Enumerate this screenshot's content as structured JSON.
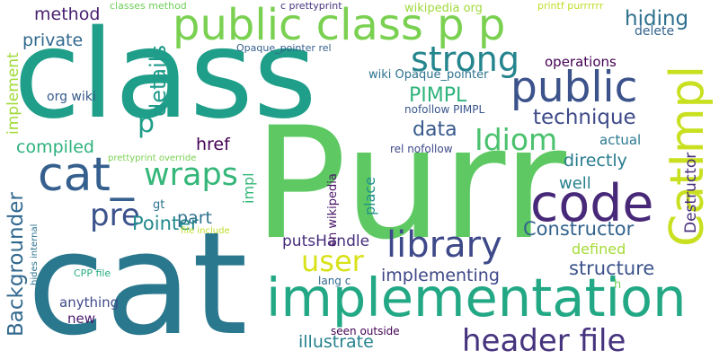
{
  "words": [
    {
      "text": "class",
      "color": "#1f9e89"
    },
    {
      "text": "Purr",
      "color": "#5ec962"
    },
    {
      "text": "cat",
      "color": "#2a788e"
    },
    {
      "text": "implementation",
      "color": "#22a884"
    },
    {
      "text": "public class p p",
      "color": "#7ad151"
    },
    {
      "text": "code",
      "color": "#482878"
    },
    {
      "text": "CatImpl",
      "color": "#c8e020"
    },
    {
      "text": "cat_",
      "color": "#355f8d"
    },
    {
      "text": "public",
      "color": "#3b528b"
    },
    {
      "text": "library",
      "color": "#3e4989"
    },
    {
      "text": "header file",
      "color": "#46337e"
    },
    {
      "text": "strong",
      "color": "#25858e"
    },
    {
      "text": "wraps",
      "color": "#35b779"
    },
    {
      "text": "Idiom",
      "color": "#4ac16d"
    },
    {
      "text": "pre",
      "color": "#3b528b"
    },
    {
      "text": "user",
      "color": "#d8e219"
    },
    {
      "text": "Backgrounder",
      "color": "#31688e"
    },
    {
      "text": "details",
      "color": "#1f9a8a"
    },
    {
      "text": "hiding",
      "color": "#2d708e"
    },
    {
      "text": "technique",
      "color": "#3e4a89"
    },
    {
      "text": "PIMPL",
      "color": "#2fb47c"
    },
    {
      "text": "data",
      "color": "#38598c"
    },
    {
      "text": "Constructor",
      "color": "#33638d"
    },
    {
      "text": "Pointer",
      "color": "#238a8d"
    },
    {
      "text": "structure",
      "color": "#3b528b"
    },
    {
      "text": "method",
      "color": "#481f70"
    },
    {
      "text": "private",
      "color": "#31688e"
    },
    {
      "text": "compiled",
      "color": "#2db27d"
    },
    {
      "text": "href",
      "color": "#440154"
    },
    {
      "text": "part",
      "color": "#2c728e"
    },
    {
      "text": "directly",
      "color": "#287c8e"
    },
    {
      "text": "implementing",
      "color": "#3f4788"
    },
    {
      "text": "putsHandle",
      "color": "#472d7b"
    },
    {
      "text": "illustrate",
      "color": "#26828e"
    },
    {
      "text": "Destructor",
      "color": "#472d7b"
    },
    {
      "text": "implement",
      "color": "#a0da39"
    },
    {
      "text": "well",
      "color": "#277f8e"
    },
    {
      "text": "actual",
      "color": "#2a788e"
    },
    {
      "text": "operations",
      "color": "#440154"
    },
    {
      "text": "defined",
      "color": "#a5db36"
    },
    {
      "text": "anything",
      "color": "#3e4a89"
    },
    {
      "text": "place",
      "color": "#21918c"
    },
    {
      "text": "impl",
      "color": "#35b779"
    },
    {
      "text": "new",
      "color": "#48186a"
    },
    {
      "text": "delete",
      "color": "#33638d"
    },
    {
      "text": "p",
      "color": "#1f9e89"
    },
    {
      "text": "org wiki",
      "color": "#38598c"
    },
    {
      "text": "en wikipedia",
      "color": "#471365"
    },
    {
      "text": "wiki Opaque_pointer",
      "color": "#2c728e"
    },
    {
      "text": "nofollow PIMPL",
      "color": "#39568c"
    },
    {
      "text": "rel nofollow",
      "color": "#3e4a89"
    },
    {
      "text": "seen outside",
      "color": "#440154"
    },
    {
      "text": "lang c",
      "color": "#31688e"
    },
    {
      "text": "CPP file",
      "color": "#26ad81"
    },
    {
      "text": "h",
      "color": "#73d056"
    },
    {
      "text": "gt",
      "color": "#2c728e"
    },
    {
      "text": "file include",
      "color": "#bddf26"
    },
    {
      "text": "prettyprint override",
      "color": "#7ad151"
    },
    {
      "text": "hides internal",
      "color": "#2c728e"
    },
    {
      "text": "classes method",
      "color": "#6ece58"
    },
    {
      "text": "c prettyprint",
      "color": "#46337e"
    },
    {
      "text": "wikipedia org",
      "color": "#9fda3a"
    },
    {
      "text": "printf purrrrrr",
      "color": "#bddf26"
    },
    {
      "text": "Opaque_pointer rel",
      "color": "#355f8d"
    }
  ]
}
